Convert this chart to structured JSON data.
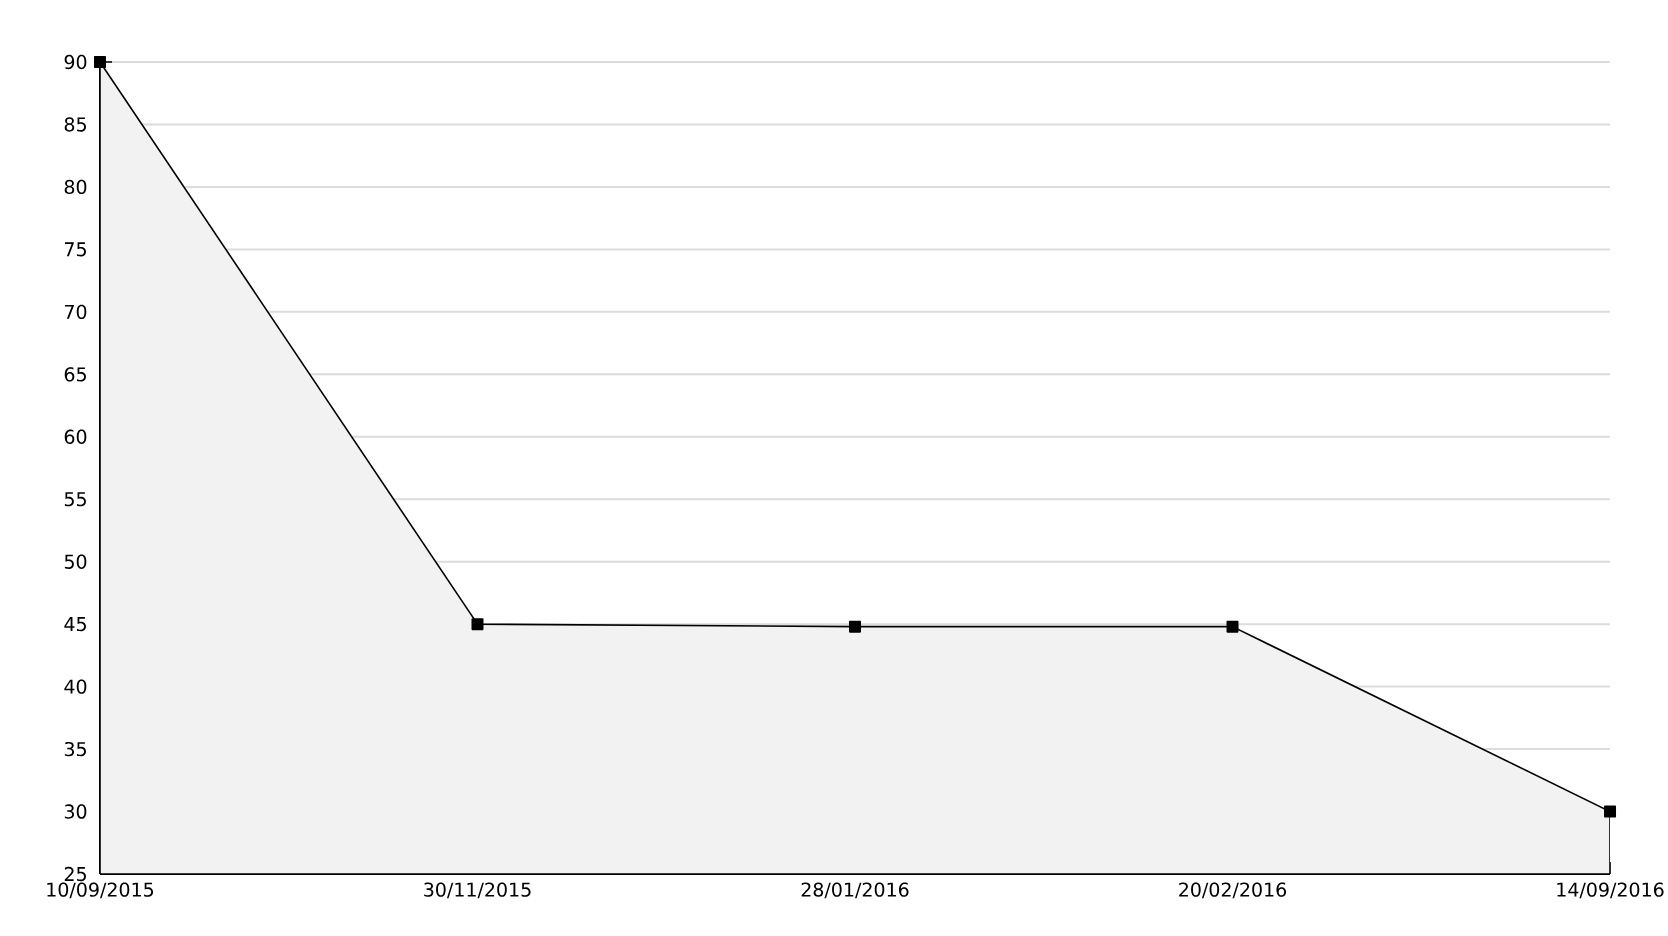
{
  "chart_data": {
    "type": "area",
    "categories": [
      "10/09/2015",
      "30/11/2015",
      "28/01/2016",
      "20/02/2016",
      "14/09/2016"
    ],
    "values": [
      90,
      45,
      44.8,
      44.8,
      30
    ],
    "color": "#f2f2f2",
    "ylim": [
      25,
      90
    ],
    "yticks": [
      25,
      30,
      35,
      40,
      45,
      50,
      55,
      60,
      65,
      70,
      75,
      80,
      85,
      90
    ],
    "grid": "y",
    "marker": "square"
  }
}
